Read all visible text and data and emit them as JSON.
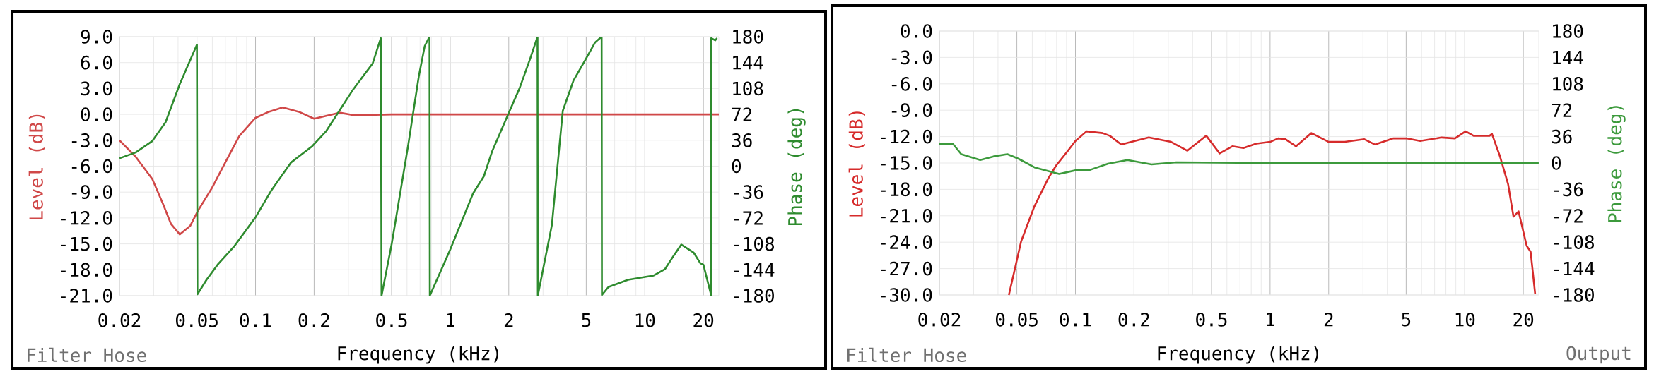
{
  "chart_data": [
    {
      "type": "line",
      "xlabel": "Frequency (kHz)",
      "ylabel": "Level (dB)",
      "y2label": "Phase (deg)",
      "annotations": [
        "Filter Hose"
      ],
      "log": "x",
      "grid": true,
      "xlim": [
        0.02,
        24
      ],
      "xticks": [
        0.02,
        0.05,
        0.1,
        0.2,
        0.5,
        1,
        2,
        5,
        10,
        20
      ],
      "ylim": [
        -21,
        9
      ],
      "yticks": [
        {
          "value": 9,
          "label": "9.0"
        },
        {
          "value": 6,
          "label": "6.0"
        },
        {
          "value": 3,
          "label": "3.0"
        },
        {
          "value": 0,
          "label": "0.0"
        },
        {
          "value": -3,
          "label": "-3.0"
        },
        {
          "value": -6,
          "label": "-6.0"
        },
        {
          "value": -9,
          "label": "-9.0"
        },
        {
          "value": -12,
          "label": "-12.0"
        },
        {
          "value": -15,
          "label": "-15.0"
        },
        {
          "value": -18,
          "label": "-18.0"
        },
        {
          "value": -21,
          "label": "-21.0"
        }
      ],
      "y2lim": [
        -180,
        180
      ],
      "y2ticks": [
        180,
        144,
        108,
        72,
        36,
        0,
        -36,
        -72,
        -108,
        -144,
        -180
      ],
      "series": [
        {
          "color": "#d04848",
          "x": [
            0.02,
            0.0242,
            0.0295,
            0.0335,
            0.0368,
            0.0408,
            0.0462,
            0.0508,
            0.0598,
            0.0702,
            0.0826,
            0.1,
            0.117,
            0.138,
            0.167,
            0.2,
            0.27,
            0.32,
            0.5,
            1,
            2,
            5,
            10,
            24
          ],
          "values": [
            -3,
            -4.9,
            -7.5,
            -10.4,
            -12.7,
            -13.9,
            -12.9,
            -11.1,
            -8.5,
            -5.5,
            -2.5,
            -0.4,
            0.3,
            0.8,
            0.3,
            -0.5,
            0.2,
            -0.1,
            0,
            0,
            0,
            0,
            0,
            0
          ]
        },
        {
          "color": "#2e8b2e",
          "axis": "y2",
          "x": [
            0.02,
            0.0242,
            0.0295,
            0.0345,
            0.0408,
            0.05,
            0.0503,
            0.056,
            0.0638,
            0.0774,
            0.1,
            0.121,
            0.152,
            0.196,
            0.231,
            0.318,
            0.4,
            0.44,
            0.444,
            0.5,
            0.61,
            0.69,
            0.74,
            0.783,
            0.786,
            1.0,
            1.31,
            1.49,
            1.64,
            2.0,
            2.27,
            2.58,
            2.81,
            2.82,
            3.33,
            3.79,
            4.3,
            5.0,
            5.55,
            6.0,
            6.02,
            6.5,
            8.2,
            10,
            11.1,
            12.7,
            14.1,
            15.4,
            17.8,
            19.3,
            20,
            21.9,
            21.95,
            23,
            23.5
          ],
          "values": [
            11,
            19,
            35,
            61,
            114,
            169,
            -178,
            -158,
            -137,
            -112,
            -71,
            -33,
            5,
            28,
            49,
            107,
            143,
            178,
            -180,
            -109,
            31,
            125,
            167,
            180,
            -180,
            -116,
            -38,
            -14,
            20,
            74,
            108,
            150,
            180,
            -180,
            -82,
            77,
            119,
            150,
            172,
            180,
            -179,
            -168,
            -158,
            -154,
            -152,
            -143,
            -124,
            -109,
            -120,
            -135,
            -137,
            -179,
            178,
            175,
            178
          ]
        }
      ]
    },
    {
      "type": "line",
      "xlabel": "Frequency (kHz)",
      "ylabel": "Level (dB)",
      "y2label": "Phase (deg)",
      "annotations": [
        "Filter Hose",
        "Output"
      ],
      "log": "x",
      "grid": true,
      "xlim": [
        0.02,
        24
      ],
      "xticks": [
        0.02,
        0.05,
        0.1,
        0.2,
        0.5,
        1,
        2,
        5,
        10,
        20
      ],
      "ylim": [
        -30,
        0
      ],
      "yticks": [
        {
          "value": 0,
          "label": "0.0"
        },
        {
          "value": -3,
          "label": "-3.0"
        },
        {
          "value": -6,
          "label": "-6.0"
        },
        {
          "value": -9,
          "label": "-9.0"
        },
        {
          "value": -12,
          "label": "-12.0"
        },
        {
          "value": -15,
          "label": "-15.0"
        },
        {
          "value": -18,
          "label": "-18.0"
        },
        {
          "value": -21,
          "label": "-21.0"
        },
        {
          "value": -24,
          "label": "-24.0"
        },
        {
          "value": -27,
          "label": "-27.0"
        },
        {
          "value": -30,
          "label": "-30.0"
        }
      ],
      "y2lim": [
        -180,
        180
      ],
      "y2ticks": [
        180,
        144,
        108,
        72,
        36,
        0,
        -36,
        -72,
        -108,
        -144,
        -180
      ],
      "series": [
        {
          "color": "#d62b2b",
          "x": [
            0.0455,
            0.0526,
            0.0616,
            0.0723,
            0.0795,
            0.0908,
            0.1,
            0.114,
            0.138,
            0.15,
            0.172,
            0.202,
            0.238,
            0.31,
            0.376,
            0.47,
            0.55,
            0.64,
            0.73,
            0.85,
            1.0,
            1.1,
            1.2,
            1.36,
            1.63,
            2.0,
            2.42,
            3.05,
            3.46,
            4.3,
            5.0,
            5.9,
            7.6,
            8.9,
            10.1,
            11.1,
            13.4,
            13.8,
            15.2,
            16.7,
            17.8,
            18.9,
            20.8,
            21.8,
            23.0
          ],
          "values": [
            -30,
            -23.9,
            -19.9,
            -16.8,
            -15.3,
            -13.7,
            -12.5,
            -11.4,
            -11.6,
            -11.9,
            -12.9,
            -12.5,
            -12.1,
            -12.6,
            -13.6,
            -11.9,
            -13.9,
            -13.1,
            -13.3,
            -12.8,
            -12.6,
            -12.2,
            -12.3,
            -13.1,
            -11.6,
            -12.6,
            -12.6,
            -12.3,
            -12.9,
            -12.2,
            -12.2,
            -12.5,
            -12.1,
            -12.2,
            -11.4,
            -11.9,
            -11.9,
            -11.7,
            -14.3,
            -17.4,
            -21.1,
            -20.5,
            -24.4,
            -25.1,
            -29.9
          ]
        },
        {
          "color": "#3c9a3c",
          "axis": "y2",
          "x": [
            0.02,
            0.0235,
            0.0259,
            0.0324,
            0.038,
            0.0447,
            0.0508,
            0.0616,
            0.0824,
            0.1,
            0.117,
            0.147,
            0.185,
            0.246,
            0.33,
            1,
            5,
            24
          ],
          "values": [
            26,
            26,
            12,
            4,
            9,
            12,
            6,
            -6,
            -15,
            -10,
            -10,
            -1,
            4,
            -2,
            1,
            0,
            0,
            0
          ]
        }
      ]
    }
  ]
}
